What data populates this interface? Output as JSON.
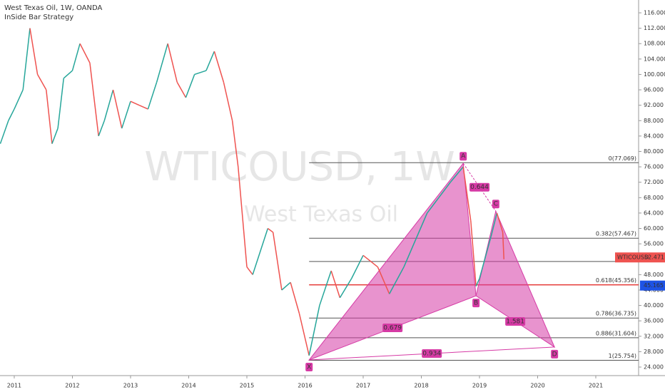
{
  "chart_data": {
    "type": "line",
    "header": {
      "symbol_line": "West Texas Oil, 1W, OANDA",
      "study": "InSide Bar Strategy"
    },
    "watermark": {
      "ticker": "WTICOUSD, 1W",
      "name": "West Texas Oil"
    },
    "xlim": [
      2010.755,
      2021.736
    ],
    "xticks": [
      2011,
      2012,
      2013,
      2014,
      2015,
      2016,
      2017,
      2018,
      2019,
      2020,
      2021
    ],
    "ylim": [
      21.78,
      119.33
    ],
    "yticks": [
      {
        "value": 24,
        "label": "24.000"
      },
      {
        "value": 28,
        "label": "28.000"
      },
      {
        "value": 32,
        "label": "32.000"
      },
      {
        "value": 36,
        "label": "36.000"
      },
      {
        "value": 40,
        "label": "40.000"
      },
      {
        "value": 44,
        "label": "44.000"
      },
      {
        "value": 48,
        "label": "48.000"
      },
      {
        "value": 52,
        "label": "52.000"
      },
      {
        "value": 56,
        "label": "56.000"
      },
      {
        "value": 60,
        "label": "60.000"
      },
      {
        "value": 64,
        "label": "64.000"
      },
      {
        "value": 68,
        "label": "68.000"
      },
      {
        "value": 72,
        "label": "72.000"
      },
      {
        "value": 76,
        "label": "76.000"
      },
      {
        "value": 80,
        "label": "80.000"
      },
      {
        "value": 84,
        "label": "84.000"
      },
      {
        "value": 88,
        "label": "88.000"
      },
      {
        "value": 92,
        "label": "92.000"
      },
      {
        "value": 96,
        "label": "96.000"
      },
      {
        "value": 100,
        "label": "100.000"
      },
      {
        "value": 104,
        "label": "104.000"
      },
      {
        "value": 108,
        "label": "108.000"
      },
      {
        "value": 112,
        "label": "112.000"
      },
      {
        "value": 116,
        "label": "116.000"
      }
    ],
    "price": {
      "up_color": "#26a69a",
      "down_color": "#ef5350",
      "x": [
        2010.76,
        2010.9,
        2011.0,
        2011.15,
        2011.27,
        2011.4,
        2011.55,
        2011.65,
        2011.75,
        2011.85,
        2012.0,
        2012.13,
        2012.3,
        2012.45,
        2012.55,
        2012.7,
        2012.85,
        2013.0,
        2013.15,
        2013.3,
        2013.45,
        2013.64,
        2013.8,
        2013.95,
        2014.1,
        2014.3,
        2014.44,
        2014.6,
        2014.75,
        2014.85,
        2015.0,
        2015.1,
        2015.36,
        2015.45,
        2015.6,
        2015.75,
        2015.9,
        2016.07,
        2016.25,
        2016.45,
        2016.6,
        2016.8,
        2017.0,
        2017.25,
        2017.45,
        2017.7,
        2017.9,
        2018.1,
        2018.3,
        2018.5,
        2018.72,
        2018.85,
        2018.94,
        2019.0,
        2019.2,
        2019.3,
        2019.4,
        2019.42
      ],
      "values": [
        82,
        88,
        91,
        96,
        112,
        100,
        96,
        82,
        86,
        99,
        101,
        108,
        103,
        84,
        88,
        96,
        86,
        93,
        92,
        91,
        98,
        108,
        98,
        94,
        100,
        101,
        106,
        98,
        88,
        76,
        50,
        48,
        60,
        59,
        44,
        46,
        38,
        27,
        40,
        49,
        42,
        47,
        53,
        50,
        43,
        50,
        57,
        64,
        68,
        72,
        76,
        62,
        45,
        47,
        58,
        64,
        59,
        52
      ]
    },
    "pattern": {
      "color": "#d63aa5",
      "points": [
        {
          "name": "X",
          "x": 2016.07,
          "y": 25.85
        },
        {
          "name": "A",
          "x": 2018.72,
          "y": 76.9
        },
        {
          "name": "B",
          "x": 2018.94,
          "y": 42.5
        },
        {
          "name": "C",
          "x": 2019.28,
          "y": 64.5
        },
        {
          "name": "D",
          "x": 2020.29,
          "y": 29.2
        }
      ],
      "ratios": [
        0.679,
        0.644,
        1.581,
        0.934
      ]
    },
    "fib_levels": [
      {
        "value": 77.069,
        "label": "0(77.069)"
      },
      {
        "value": 57.467,
        "label": "0.382(57.467)"
      },
      {
        "value": 51.41
      },
      {
        "value": 45.356,
        "label": "0.618(45.356)"
      },
      {
        "value": 36.735,
        "label": "0.786(36.735)"
      },
      {
        "value": 31.604,
        "label": "0.886(31.604)"
      },
      {
        "value": 25.754,
        "label": "1(25.754)"
      }
    ],
    "last_price": {
      "symbol": "WTICOUSD",
      "value": 52.471,
      "label": "52.471"
    },
    "alert_price": {
      "value": 45.165,
      "label": "45.165"
    }
  }
}
